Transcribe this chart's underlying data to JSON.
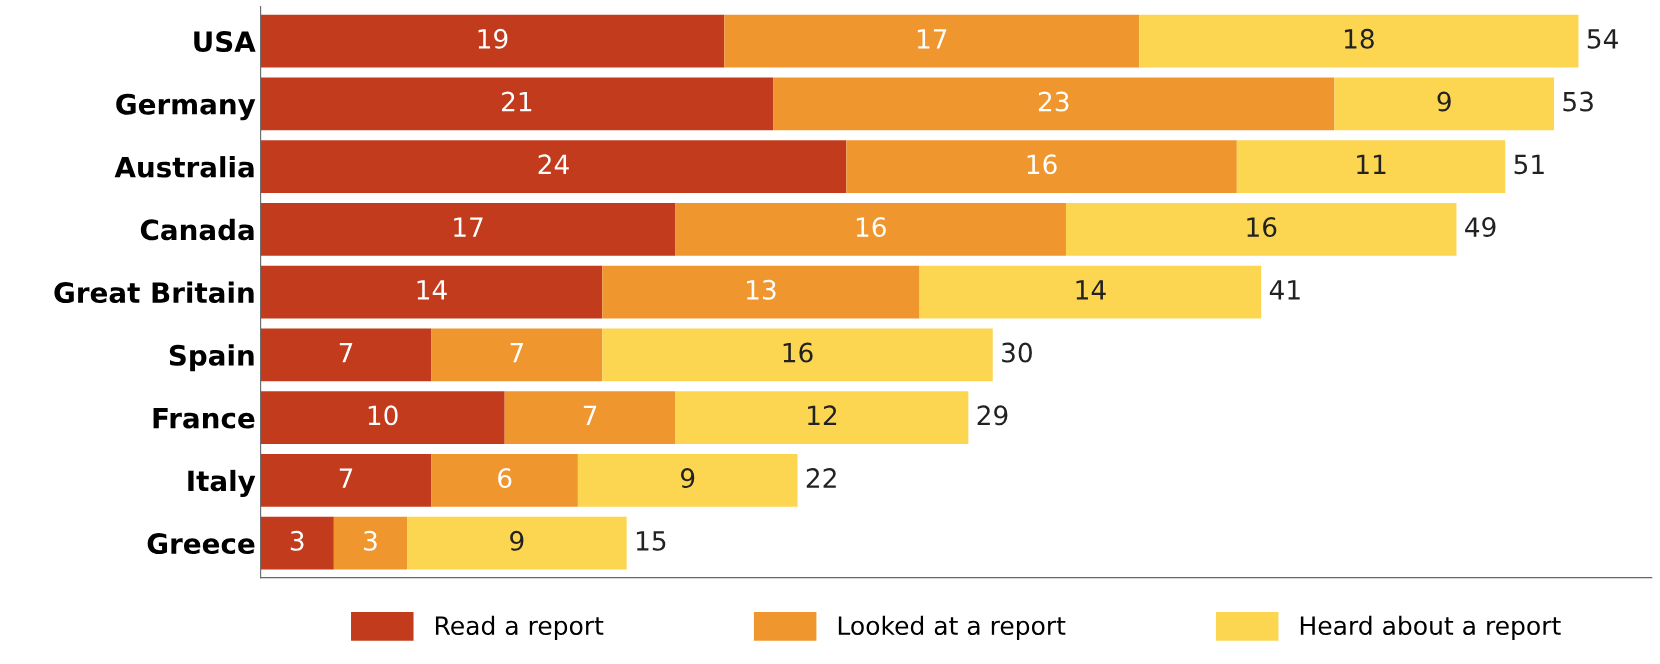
{
  "chart_data": {
    "type": "bar",
    "orientation": "horizontal",
    "stacked": true,
    "categories": [
      "USA",
      "Germany",
      "Australia",
      "Canada",
      "Great Britain",
      "Spain",
      "France",
      "Italy",
      "Greece"
    ],
    "series": [
      {
        "name": "Read a report",
        "color": "#c23b1c",
        "values": [
          19,
          21,
          24,
          17,
          14,
          7,
          10,
          7,
          3
        ]
      },
      {
        "name": "Looked at a report",
        "color": "#f0962f",
        "values": [
          17,
          23,
          16,
          16,
          13,
          7,
          7,
          6,
          3
        ]
      },
      {
        "name": "Heard about a report",
        "color": "#fdd651",
        "values": [
          18,
          9,
          11,
          16,
          14,
          16,
          12,
          9,
          9
        ]
      }
    ],
    "totals": [
      "54",
      "53",
      "51",
      "49",
      "41",
      "30",
      "29",
      "22",
      "15"
    ],
    "data_labels": true,
    "xlim": [
      0,
      57
    ],
    "tick_labels": "y",
    "grid": false,
    "legend": "bottom"
  }
}
